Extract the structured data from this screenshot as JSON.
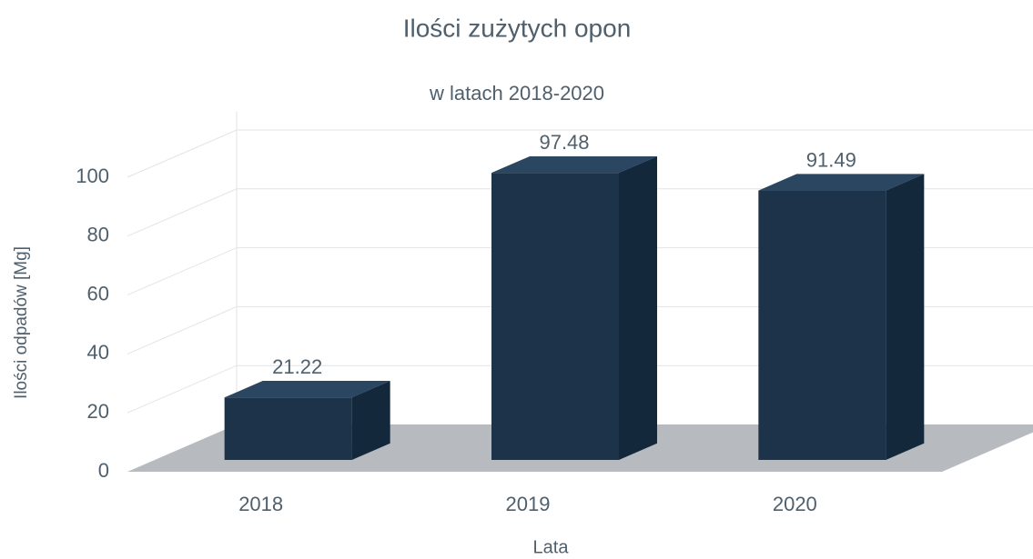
{
  "chart_data": {
    "type": "bar3d",
    "title": "Ilości zużytych opon",
    "subtitle": "w latach 2018-2020",
    "x_label": "Lata",
    "y_label": "Ilości odpadów [Mg]",
    "categories": [
      "2018",
      "2019",
      "2020"
    ],
    "values": [
      21.22,
      97.48,
      91.49
    ],
    "color": "#1c3349",
    "ylim": [
      0,
      100
    ],
    "yticks": [
      0,
      20,
      40,
      60,
      80,
      100
    ],
    "grid": true
  }
}
